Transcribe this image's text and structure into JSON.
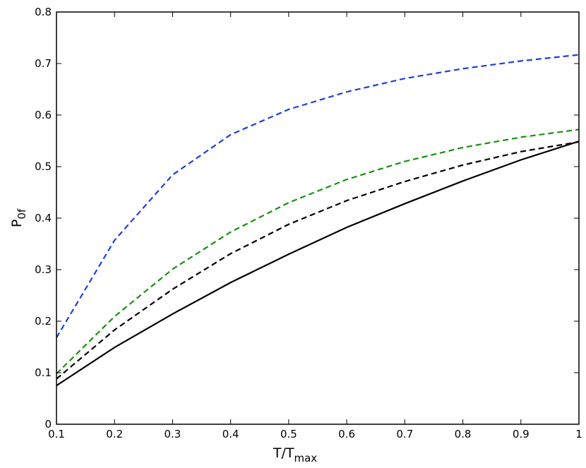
{
  "chart_data": {
    "type": "line",
    "title": "",
    "xlabel": "T/T",
    "xlabel_sub": "max",
    "ylabel": "P",
    "ylabel_sub": "0f",
    "xlim": [
      0.1,
      1
    ],
    "ylim": [
      0,
      0.8
    ],
    "xticks": [
      "0.1",
      "0.2",
      "0.3",
      "0.4",
      "0.5",
      "0.6",
      "0.7",
      "0.8",
      "0.9",
      "1"
    ],
    "yticks": [
      "0",
      "0.1",
      "0.2",
      "0.3",
      "0.4",
      "0.5",
      "0.6",
      "0.7",
      "0.8"
    ],
    "grid": false,
    "x": [
      0.1,
      0.2,
      0.3,
      0.4,
      0.5,
      0.6,
      0.7,
      0.8,
      0.9,
      1.0
    ],
    "series": [
      {
        "color": "#1f3fdc",
        "dash": "dashed",
        "values": [
          0.168,
          0.357,
          0.484,
          0.562,
          0.611,
          0.645,
          0.671,
          0.69,
          0.705,
          0.717
        ]
      },
      {
        "color": "#17910f",
        "dash": "dashed",
        "values": [
          0.098,
          0.209,
          0.301,
          0.373,
          0.43,
          0.475,
          0.51,
          0.537,
          0.557,
          0.572
        ]
      },
      {
        "color": "#000000",
        "dash": "dashed",
        "values": [
          0.088,
          0.183,
          0.262,
          0.331,
          0.388,
          0.434,
          0.471,
          0.503,
          0.529,
          0.548
        ]
      },
      {
        "color": "#000000",
        "dash": "solid",
        "values": [
          0.075,
          0.149,
          0.214,
          0.275,
          0.33,
          0.382,
          0.428,
          0.472,
          0.513,
          0.549
        ]
      }
    ]
  }
}
